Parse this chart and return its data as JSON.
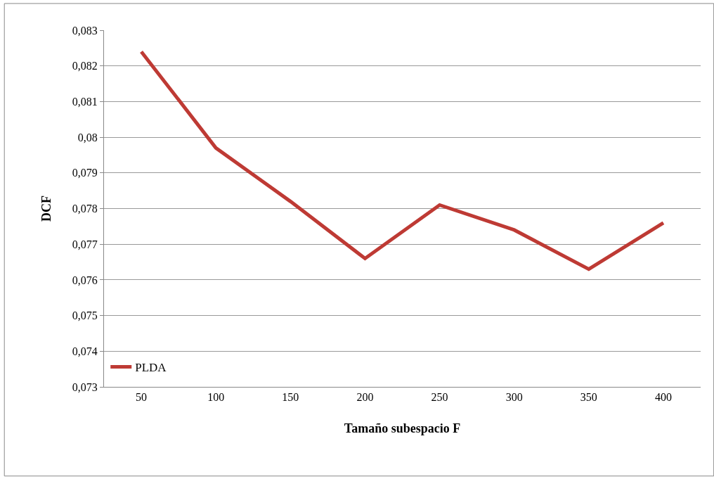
{
  "chart_data": {
    "type": "line",
    "xlabel": "Tamaño subespacio F",
    "ylabel": "DCF",
    "categories": [
      "50",
      "100",
      "150",
      "200",
      "250",
      "300",
      "350",
      "400"
    ],
    "series": [
      {
        "name": "PLDA",
        "color": "#be3a34",
        "values": [
          0.0824,
          0.0797,
          0.0782,
          0.0766,
          0.0781,
          0.0774,
          0.0763,
          0.0776
        ]
      }
    ],
    "ylim": [
      0.073,
      0.083
    ],
    "yticks": [
      {
        "value": 0.073,
        "label": "0,073"
      },
      {
        "value": 0.074,
        "label": "0,074"
      },
      {
        "value": 0.075,
        "label": "0,075"
      },
      {
        "value": 0.076,
        "label": "0,076"
      },
      {
        "value": 0.077,
        "label": "0,077"
      },
      {
        "value": 0.078,
        "label": "0,078"
      },
      {
        "value": 0.079,
        "label": "0,079"
      },
      {
        "value": 0.08,
        "label": "0,08"
      },
      {
        "value": 0.081,
        "label": "0,081"
      },
      {
        "value": 0.082,
        "label": "0,082"
      },
      {
        "value": 0.083,
        "label": "0,083"
      }
    ],
    "grid": "y",
    "legend": "bottom left",
    "marker": "none",
    "line_style": "solid"
  }
}
